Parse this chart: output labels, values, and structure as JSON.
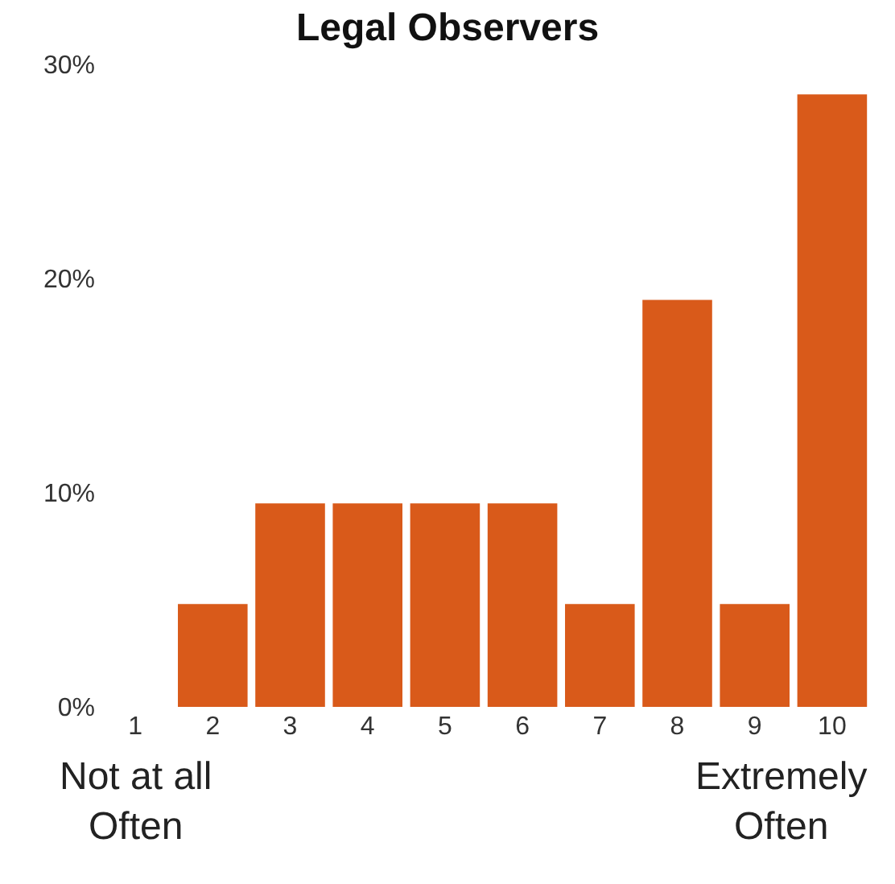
{
  "chart_data": {
    "type": "bar",
    "title": "Legal Observers",
    "categories": [
      "1",
      "2",
      "3",
      "4",
      "5",
      "6",
      "7",
      "8",
      "9",
      "10"
    ],
    "values": [
      0,
      4.8,
      9.5,
      9.5,
      9.5,
      9.5,
      4.8,
      19,
      4.8,
      28.6
    ],
    "color": "#d95a1a",
    "ylim": [
      0,
      30
    ],
    "yticks": [
      {
        "value": 0,
        "label": "0%"
      },
      {
        "value": 10,
        "label": "10%"
      },
      {
        "value": 20,
        "label": "20%"
      },
      {
        "value": 30,
        "label": "30%"
      }
    ],
    "annotations": [
      "Not at all\nOften",
      "Extremely\nOften"
    ]
  }
}
